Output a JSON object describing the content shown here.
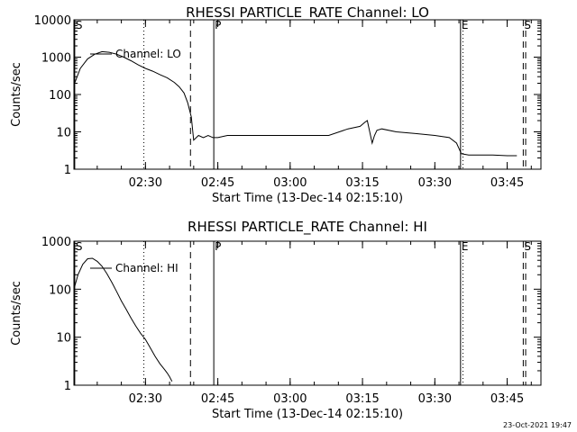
{
  "chart_data": [
    {
      "type": "line",
      "title": "RHESSI PARTICLE_RATE Channel: LO",
      "xlabel": "Start Time (13-Dec-14 02:15:10)",
      "ylabel": "Counts/sec",
      "yscale": "log",
      "ylim": [
        1,
        10000
      ],
      "xlim": [
        "02:15:10",
        "03:52:00"
      ],
      "x_ticks": [
        "02:30",
        "02:45",
        "03:00",
        "03:15",
        "03:30",
        "03:45"
      ],
      "y_ticks": [
        "1",
        "10",
        "100",
        "1000",
        "10000"
      ],
      "legend": "top-left",
      "series": [
        {
          "name": "Channel: LO",
          "x": [
            "02:15:10",
            "02:16:30",
            "02:18:00",
            "02:19:30",
            "02:21:00",
            "02:22:30",
            "02:24:00",
            "02:25:30",
            "02:27:00",
            "02:28:30",
            "02:30:00",
            "02:31:30",
            "02:33:00",
            "02:34:30",
            "02:36:00",
            "02:37:00",
            "02:38:00",
            "02:38:45",
            "02:39:30",
            "02:40:00",
            "02:41:00",
            "02:42:00",
            "02:43:00",
            "02:44:00",
            "02:45:00",
            "02:47:00",
            "02:50:00",
            "02:53:00",
            "02:56:00",
            "03:00:00",
            "03:04:00",
            "03:08:00",
            "03:12:00",
            "03:14:30",
            "03:15:30",
            "03:16:00",
            "03:17:00",
            "03:17:30",
            "03:18:00",
            "03:19:00",
            "03:22:00",
            "03:26:00",
            "03:30:00",
            "03:33:00",
            "03:34:30",
            "03:35:30",
            "03:37:00",
            "03:40:00",
            "03:42:00",
            "03:45:00",
            "03:47:00"
          ],
          "values": [
            180,
            500,
            900,
            1200,
            1400,
            1350,
            1200,
            1000,
            800,
            620,
            500,
            420,
            340,
            280,
            210,
            160,
            110,
            60,
            25,
            6,
            8,
            7,
            8,
            7,
            7,
            8,
            8,
            8,
            8,
            8,
            8,
            8,
            12,
            14,
            18,
            20,
            5,
            8,
            11,
            12,
            10,
            9,
            8,
            7,
            5,
            2.6,
            2.4,
            2.4,
            2.4,
            2.3,
            2.3
          ]
        }
      ],
      "markers": [
        {
          "time": "02:15:20",
          "label": "S",
          "style": "solid"
        },
        {
          "time": "02:29:40",
          "label": "",
          "style": "dotted"
        },
        {
          "time": "02:39:20",
          "label": "",
          "style": "dashed"
        },
        {
          "time": "02:44:10",
          "label": "P",
          "style": "solid"
        },
        {
          "time": "03:35:20",
          "label": "E",
          "style": "solid"
        },
        {
          "time": "03:35:50",
          "label": "",
          "style": "dotted"
        },
        {
          "time": "03:48:20",
          "label": "S",
          "style": "dashed"
        },
        {
          "time": "03:48:50",
          "label": "",
          "style": "dashed"
        }
      ]
    },
    {
      "type": "line",
      "title": "RHESSI PARTICLE_RATE Channel: HI",
      "xlabel": "Start Time (13-Dec-14 02:15:10)",
      "ylabel": "Counts/sec",
      "yscale": "log",
      "ylim": [
        1,
        1000
      ],
      "xlim": [
        "02:15:10",
        "03:52:00"
      ],
      "x_ticks": [
        "02:30",
        "02:45",
        "03:00",
        "03:15",
        "03:30",
        "03:45"
      ],
      "y_ticks": [
        "1",
        "10",
        "100",
        "1000"
      ],
      "legend": "top-left",
      "series": [
        {
          "name": "Channel: HI",
          "x": [
            "02:15:10",
            "02:16:00",
            "02:17:00",
            "02:18:00",
            "02:19:00",
            "02:20:00",
            "02:21:00",
            "02:22:00",
            "02:23:00",
            "02:24:00",
            "02:25:00",
            "02:26:00",
            "02:27:00",
            "02:28:00",
            "02:29:00",
            "02:30:00",
            "02:31:00",
            "02:32:00",
            "02:33:00",
            "02:34:00",
            "02:34:30",
            "02:35:00",
            "02:35:30"
          ],
          "values": [
            100,
            200,
            330,
            430,
            440,
            380,
            300,
            210,
            140,
            90,
            57,
            38,
            25,
            17,
            12,
            9,
            6,
            4,
            2.8,
            2.1,
            1.8,
            1.5,
            1.2
          ]
        }
      ],
      "markers": [
        {
          "time": "02:15:20",
          "label": "S",
          "style": "solid"
        },
        {
          "time": "02:29:40",
          "label": "",
          "style": "dotted"
        },
        {
          "time": "02:39:20",
          "label": "",
          "style": "dashed"
        },
        {
          "time": "02:44:10",
          "label": "P",
          "style": "solid"
        },
        {
          "time": "03:35:20",
          "label": "E",
          "style": "solid"
        },
        {
          "time": "03:35:50",
          "label": "",
          "style": "dotted"
        },
        {
          "time": "03:48:20",
          "label": "S",
          "style": "dashed"
        },
        {
          "time": "03:48:50",
          "label": "",
          "style": "dashed"
        }
      ]
    }
  ],
  "footer": {
    "date": "23-Oct-2021 19:47"
  }
}
